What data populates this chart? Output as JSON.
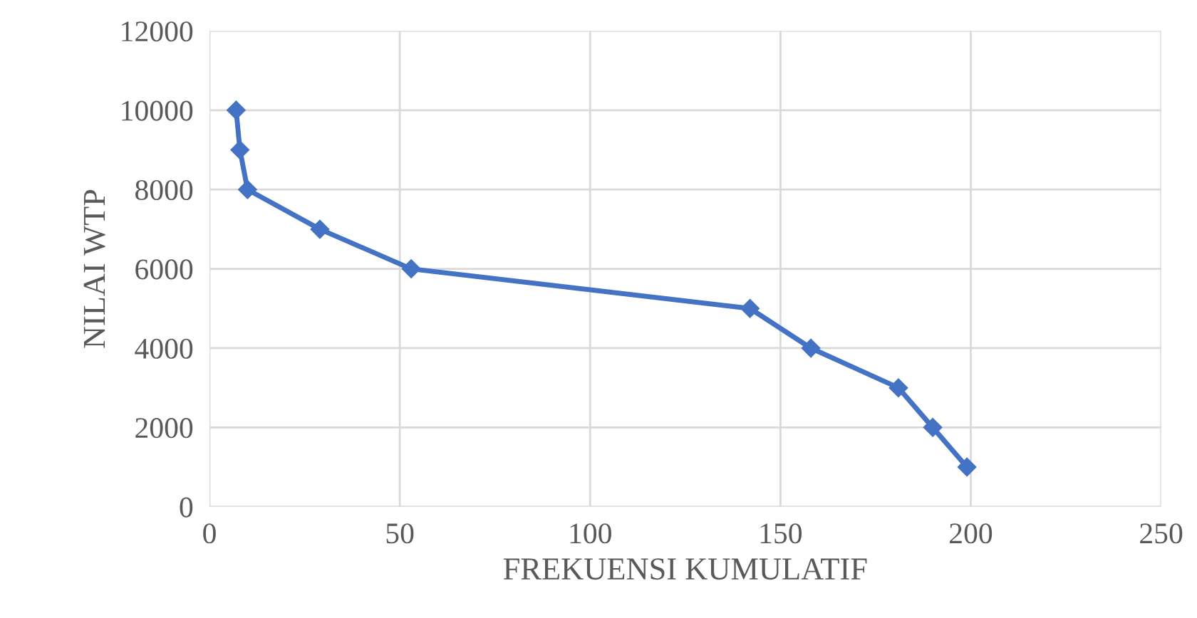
{
  "chart_data": {
    "type": "line",
    "xlabel": "FREKUENSI KUMULATIF",
    "ylabel": "NILAI WTP",
    "x": [
      7,
      8,
      10,
      29,
      53,
      142,
      158,
      181,
      190,
      199
    ],
    "series": [
      {
        "color": "#4472c4",
        "values": [
          10000,
          9000,
          8000,
          7000,
          6000,
          5000,
          4000,
          3000,
          2000,
          1000
        ]
      }
    ],
    "xlim": [
      0,
      250
    ],
    "xticks": [
      0,
      50,
      100,
      150,
      200,
      250
    ],
    "ylim": [
      0,
      12000
    ],
    "yticks": [
      0,
      2000,
      4000,
      6000,
      8000,
      10000,
      12000
    ],
    "grid": true,
    "marker": "diamond",
    "line_style": "solid"
  }
}
